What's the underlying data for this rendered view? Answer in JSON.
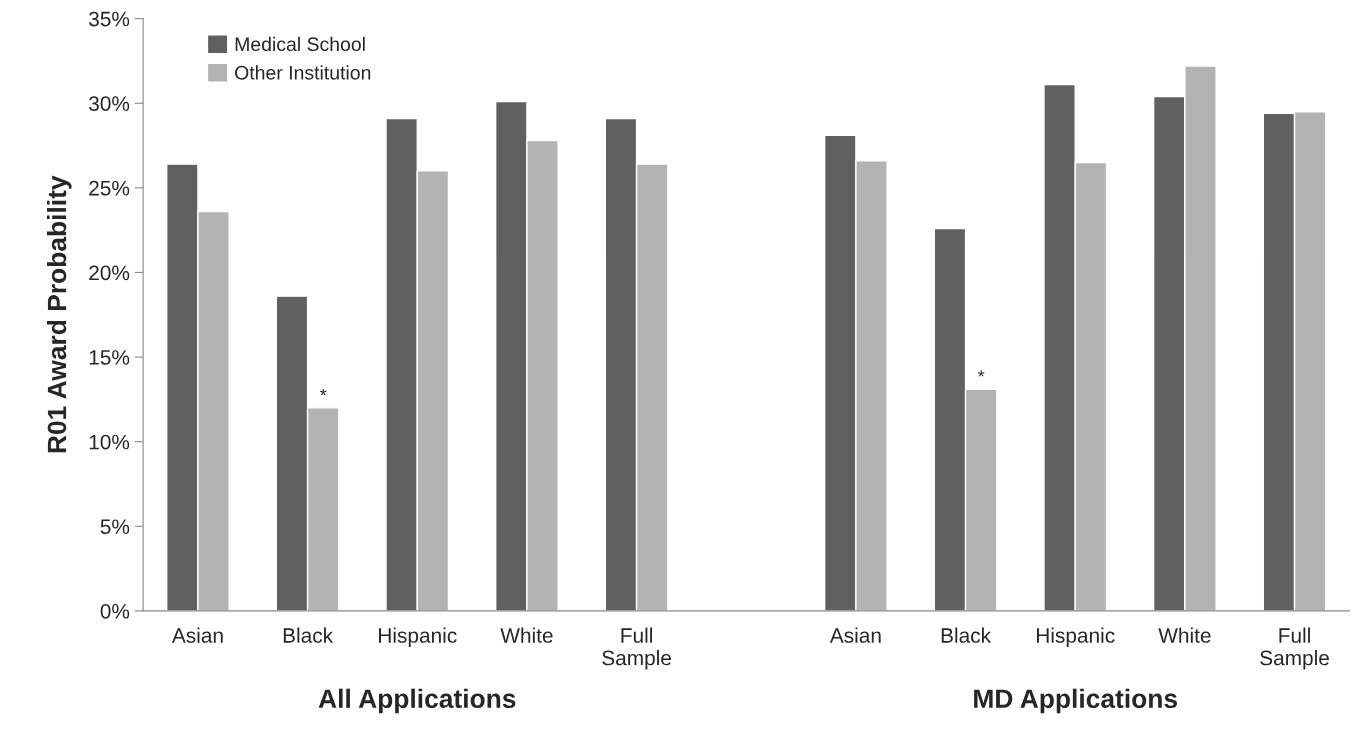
{
  "chart_data": {
    "type": "bar",
    "ylabel": "R01 Award Probability",
    "categories": [
      "Asian",
      "Black",
      "Hispanic",
      "White",
      "Full\nSample",
      null,
      "Asian",
      "Black",
      "Hispanic",
      "White",
      "Full\nSample"
    ],
    "series": [
      {
        "name": "Medical School",
        "color": "#606060",
        "values": [
          26.4,
          18.6,
          29.1,
          30.1,
          29.1,
          null,
          28.1,
          22.6,
          31.1,
          30.4,
          29.4
        ]
      },
      {
        "name": "Other Institution",
        "color": "#b3b3b3",
        "values": [
          23.6,
          12.0,
          26.0,
          27.8,
          26.4,
          null,
          26.6,
          13.1,
          26.5,
          32.2,
          29.5
        ]
      }
    ],
    "ylim": [
      0,
      35
    ],
    "yticks": [
      {
        "value": 0,
        "label": "0%"
      },
      {
        "value": 5,
        "label": "5%"
      },
      {
        "value": 10,
        "label": "10%"
      },
      {
        "value": 15,
        "label": "15%"
      },
      {
        "value": 20,
        "label": "20%"
      },
      {
        "value": 25,
        "label": "25%"
      },
      {
        "value": 30,
        "label": "30%"
      },
      {
        "value": 35,
        "label": "35%"
      }
    ],
    "grid": false,
    "legend": "top left",
    "annotations": [
      "All Applications",
      "MD Applications",
      "*",
      "*"
    ]
  }
}
